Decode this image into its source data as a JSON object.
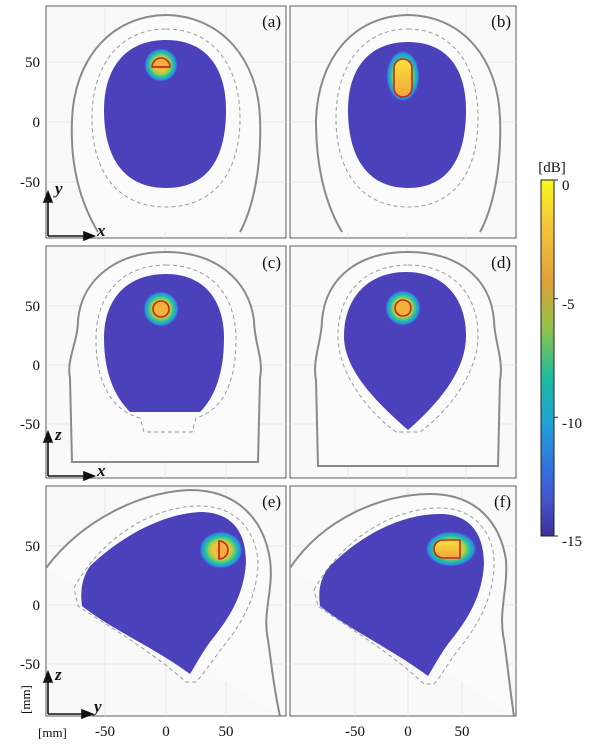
{
  "chart_data": {
    "type": "heatmap",
    "colorbar": {
      "unit": "[dB]",
      "ticks": [
        "0",
        "-5",
        "-10",
        "-15"
      ],
      "values": [
        0,
        -5,
        -10,
        -15
      ],
      "range": [
        -15,
        0
      ],
      "colors": [
        "#f8f81a",
        "#f5b13a",
        "#19b8a0",
        "#2d88e0",
        "#3f3fc0",
        "#3d2e9a"
      ]
    },
    "x_ticks": [
      "-50",
      "0",
      "50"
    ],
    "y_ticks": [
      "50",
      "0",
      "-50"
    ],
    "x_range": [
      -95,
      95
    ],
    "y_range": [
      -80,
      88
    ],
    "units": {
      "x": "[mm]",
      "y": "[mm]"
    },
    "panels": [
      {
        "label": "(a)",
        "plane": "xy",
        "axes": [
          "x",
          "y"
        ],
        "target_center": [
          -4,
          47
        ],
        "target_shape": "half-disc"
      },
      {
        "label": "(b)",
        "plane": "xy",
        "axes": [
          "x",
          "y"
        ],
        "target_center": [
          -4,
          38
        ],
        "target_shape": "elongated-capsule"
      },
      {
        "label": "(c)",
        "plane": "xz",
        "axes": [
          "x",
          "z"
        ],
        "target_center": [
          -4,
          46
        ],
        "target_shape": "disc"
      },
      {
        "label": "(d)",
        "plane": "xz",
        "axes": [
          "x",
          "z"
        ],
        "target_center": [
          -4,
          46
        ],
        "target_shape": "disc"
      },
      {
        "label": "(e)",
        "plane": "yz",
        "axes": [
          "y",
          "z"
        ],
        "target_center": [
          46,
          46
        ],
        "target_shape": "half-disc"
      },
      {
        "label": "(f)",
        "plane": "yz",
        "axes": [
          "y",
          "z"
        ],
        "target_center": [
          33,
          46
        ],
        "target_shape": "capsule"
      }
    ],
    "background_level_db": -15
  }
}
